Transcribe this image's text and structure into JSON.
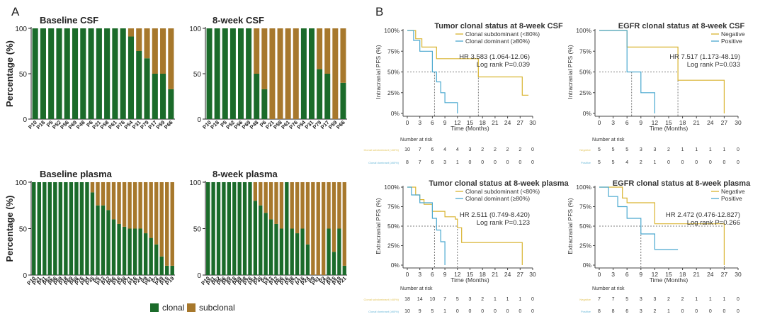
{
  "panel_labels": {
    "a": "A",
    "b": "B"
  },
  "colors": {
    "clonal": "#1b6b2a",
    "subclonal": "#a7782c",
    "yellow": "#d9b430",
    "blue": "#4aa8cf",
    "dark": "#333333",
    "faint_yellow": "#e2c45a",
    "faint_blue": "#6ab8d8"
  },
  "legend_a": {
    "clonal": "clonal",
    "subclonal": "subclonal"
  },
  "chart_data": [
    {
      "type": "bar",
      "stacked": true,
      "title": "Baseline CSF",
      "ylabel": "Percentage (%)",
      "ylim": [
        0,
        100
      ],
      "yticks": [
        0,
        50,
        100
      ],
      "categories": [
        "P10",
        "P18",
        "P5",
        "P52",
        "P56",
        "P69",
        "P48",
        "P6",
        "P21",
        "P58",
        "P61",
        "P76",
        "P54",
        "P31",
        "P79",
        "P17",
        "P59",
        "P66"
      ],
      "series": [
        {
          "name": "clonal",
          "values": [
            100,
            100,
            100,
            100,
            100,
            100,
            100,
            100,
            100,
            100,
            100,
            100,
            91,
            75,
            67,
            50,
            50,
            33
          ]
        },
        {
          "name": "subclonal",
          "values": [
            0,
            0,
            0,
            0,
            0,
            0,
            0,
            0,
            0,
            0,
            0,
            0,
            9,
            25,
            33,
            50,
            50,
            67
          ]
        }
      ]
    },
    {
      "type": "bar",
      "stacked": true,
      "title": "8-week CSF",
      "ylabel": "",
      "ylim": [
        0,
        100
      ],
      "yticks": [
        0,
        50,
        100
      ],
      "categories": [
        "P10",
        "P18",
        "P5",
        "P52",
        "P56",
        "P69",
        "P48",
        "P6",
        "P21",
        "P58",
        "P61",
        "P76",
        "P54",
        "P31",
        "P79",
        "P17",
        "P59",
        "P66"
      ],
      "series": [
        {
          "name": "clonal",
          "values": [
            100,
            100,
            100,
            100,
            100,
            100,
            50,
            33,
            0,
            0,
            0,
            0,
            100,
            100,
            55,
            50,
            0,
            40
          ]
        },
        {
          "name": "subclonal",
          "values": [
            0,
            0,
            0,
            0,
            0,
            0,
            50,
            67,
            100,
            100,
            100,
            100,
            0,
            0,
            45,
            50,
            100,
            60
          ]
        }
      ]
    },
    {
      "type": "bar",
      "stacked": true,
      "title": "Baseline plasma",
      "ylabel": "Percentage (%)",
      "ylim": [
        0,
        100
      ],
      "yticks": [
        0,
        50,
        100
      ],
      "categories": [
        "P10",
        "P21",
        "P31",
        "P52",
        "P56",
        "P59",
        "P18",
        "P69",
        "P58",
        "P76",
        "P54",
        "P35",
        "P5",
        "P13",
        "P12",
        "P66",
        "P16",
        "P48",
        "P71",
        "P16",
        "P24",
        "P9",
        "P51",
        "P3",
        "P39",
        "P15",
        "P19"
      ],
      "series": [
        {
          "name": "clonal",
          "values": [
            100,
            100,
            100,
            100,
            100,
            100,
            100,
            100,
            100,
            100,
            100,
            89,
            75,
            75,
            70,
            60,
            55,
            52,
            50,
            50,
            50,
            45,
            40,
            33,
            20,
            10,
            10
          ]
        },
        {
          "name": "subclonal",
          "values": [
            0,
            0,
            0,
            0,
            0,
            0,
            0,
            0,
            0,
            0,
            0,
            11,
            25,
            25,
            30,
            40,
            45,
            48,
            50,
            50,
            50,
            55,
            60,
            67,
            80,
            90,
            90
          ]
        }
      ]
    },
    {
      "type": "bar",
      "stacked": true,
      "title": "8-week plasma",
      "ylabel": "",
      "ylim": [
        0,
        100
      ],
      "yticks": [
        0,
        50,
        100
      ],
      "categories": [
        "P10",
        "P31",
        "P52",
        "P56",
        "P59",
        "P18",
        "P69",
        "P58",
        "P76",
        "P54",
        "P35",
        "P5",
        "P13",
        "P12",
        "P66",
        "P16",
        "P48",
        "P71",
        "P16",
        "P24",
        "P9",
        "P51",
        "P3",
        "P39",
        "P15",
        "P19",
        "P21"
      ],
      "series": [
        {
          "name": "clonal",
          "values": [
            100,
            100,
            100,
            100,
            100,
            100,
            100,
            100,
            100,
            80,
            75,
            67,
            60,
            55,
            50,
            100,
            50,
            45,
            50,
            33,
            0,
            0,
            0,
            50,
            25,
            50,
            10
          ]
        },
        {
          "name": "subclonal",
          "values": [
            0,
            0,
            0,
            0,
            0,
            0,
            0,
            0,
            0,
            20,
            25,
            33,
            40,
            45,
            50,
            0,
            50,
            55,
            50,
            67,
            100,
            100,
            100,
            50,
            75,
            50,
            90
          ]
        }
      ]
    },
    {
      "type": "line",
      "subtype": "kaplan-meier",
      "title": "Tumor clonal status at 8-week CSF",
      "xlabel": "Time (Months)",
      "ylabel": "Intracranial PFS (%)",
      "xticks": [
        0,
        3,
        6,
        9,
        12,
        15,
        18,
        21,
        24,
        27,
        30
      ],
      "xlim": [
        0,
        30
      ],
      "yticks": [
        "0%",
        "25%",
        "50%",
        "75%",
        "100%"
      ],
      "ylim": [
        0,
        100
      ],
      "legend": [
        "Clonal subdominant (<80%)",
        "Clonal dominant (≥80%)"
      ],
      "annotation": [
        "HR 3.583 (1.064-12.06)",
        "Log rank P=0.039"
      ],
      "medians": [
        17,
        6.5
      ],
      "series": [
        {
          "steps": [
            [
              0,
              100
            ],
            [
              2,
              90
            ],
            [
              3.5,
              80
            ],
            [
              7,
              66
            ],
            [
              17,
              44
            ],
            [
              27,
              44
            ],
            [
              27.5,
              22
            ],
            [
              29,
              22
            ]
          ]
        },
        {
          "steps": [
            [
              0,
              100
            ],
            [
              1.5,
              88
            ],
            [
              3,
              75
            ],
            [
              6,
              50
            ],
            [
              7,
              38
            ],
            [
              8,
              25
            ],
            [
              9,
              13
            ],
            [
              10,
              13
            ],
            [
              12,
              0
            ]
          ]
        }
      ],
      "risk_title": "Number at risk",
      "risk_rows": [
        {
          "label": "Clonal subdominant (<80%)",
          "values": [
            10,
            7,
            6,
            4,
            4,
            3,
            2,
            2,
            2,
            2,
            0
          ]
        },
        {
          "label": "Clonal dominant (≥80%)",
          "values": [
            8,
            7,
            6,
            3,
            1,
            0,
            0,
            0,
            0,
            0,
            0
          ]
        }
      ]
    },
    {
      "type": "line",
      "subtype": "kaplan-meier",
      "title": "EGFR clonal status at 8-week CSF",
      "xlabel": "Time (Months)",
      "ylabel": "Intracranial PFS (%)",
      "xticks": [
        0,
        3,
        6,
        9,
        12,
        15,
        18,
        21,
        24,
        27,
        30
      ],
      "xlim": [
        0,
        30
      ],
      "yticks": [
        "0%",
        "25%",
        "50%",
        "75%",
        "100%"
      ],
      "ylim": [
        0,
        100
      ],
      "legend": [
        "Negative",
        "Positive"
      ],
      "annotation": [
        "HR 7.517 (1.173-48.19)",
        "Log rank P=0.033"
      ],
      "medians": [
        17,
        7
      ],
      "series": [
        {
          "steps": [
            [
              0,
              100
            ],
            [
              6,
              80
            ],
            [
              17,
              40
            ],
            [
              27,
              40
            ],
            [
              27,
              0
            ]
          ]
        },
        {
          "steps": [
            [
              0,
              100
            ],
            [
              6,
              50
            ],
            [
              9,
              25
            ],
            [
              12,
              0
            ]
          ]
        }
      ],
      "risk_title": "Number at risk",
      "risk_rows": [
        {
          "label": "Negative",
          "values": [
            5,
            5,
            5,
            3,
            3,
            2,
            1,
            1,
            1,
            1,
            0
          ]
        },
        {
          "label": "Positive",
          "values": [
            5,
            5,
            4,
            2,
            1,
            0,
            0,
            0,
            0,
            0,
            0
          ]
        }
      ]
    },
    {
      "type": "line",
      "subtype": "kaplan-meier",
      "title": "Tumor clonal status at 8-week plasma",
      "xlabel": "Time (Months)",
      "ylabel": "Extracranial PFS (%)",
      "xticks": [
        0,
        3,
        6,
        9,
        12,
        15,
        18,
        21,
        24,
        27,
        30
      ],
      "xlim": [
        0,
        30
      ],
      "yticks": [
        "0%",
        "25%",
        "50%",
        "75%",
        "100%"
      ],
      "ylim": [
        0,
        100
      ],
      "legend": [
        "Clonal subdominant (<80%)",
        "Clonal dominant (≥80%)"
      ],
      "annotation": [
        "HR 2.511 (0.749-8.420)",
        "Log rank P=0.123"
      ],
      "medians": [
        12,
        6.5
      ],
      "series": [
        {
          "steps": [
            [
              0,
              100
            ],
            [
              2,
              90
            ],
            [
              3,
              84
            ],
            [
              4,
              78
            ],
            [
              6,
              69
            ],
            [
              9,
              62
            ],
            [
              11.5,
              59
            ],
            [
              12,
              48
            ],
            [
              13,
              29
            ],
            [
              27,
              29
            ],
            [
              27.5,
              0
            ]
          ]
        },
        {
          "steps": [
            [
              0,
              100
            ],
            [
              1,
              90
            ],
            [
              3,
              80
            ],
            [
              6,
              60
            ],
            [
              7,
              45
            ],
            [
              8,
              30
            ],
            [
              9,
              0
            ]
          ]
        }
      ],
      "risk_title": "Number at risk",
      "risk_rows": [
        {
          "label": "Clonal subdominant (<80%)",
          "values": [
            18,
            14,
            10,
            7,
            5,
            3,
            2,
            1,
            1,
            1,
            0
          ]
        },
        {
          "label": "Clonal dominant (≥80%)",
          "values": [
            10,
            9,
            5,
            1,
            0,
            0,
            0,
            0,
            0,
            0,
            0
          ]
        }
      ]
    },
    {
      "type": "line",
      "subtype": "kaplan-meier",
      "title": "EGFR clonal status at 8-week plasma",
      "xlabel": "Time (Months)",
      "ylabel": "Extracranial PFS (%)",
      "xticks": [
        0,
        3,
        6,
        9,
        12,
        15,
        18,
        21,
        24,
        27,
        30
      ],
      "xlim": [
        0,
        30
      ],
      "yticks": [
        "0%",
        "25%",
        "50%",
        "75%",
        "100%"
      ],
      "ylim": [
        0,
        100
      ],
      "legend": [
        "Negative",
        "Positive"
      ],
      "annotation": [
        "HR 2.472 (0.476-12.827)",
        "Log rank P=0.266"
      ],
      "medians": [
        27,
        9
      ],
      "series": [
        {
          "steps": [
            [
              0,
              100
            ],
            [
              5,
              86
            ],
            [
              6,
              80
            ],
            [
              12,
              53
            ],
            [
              27,
              53
            ],
            [
              27,
              0
            ]
          ]
        },
        {
          "steps": [
            [
              0,
              100
            ],
            [
              2,
              88
            ],
            [
              4,
              75
            ],
            [
              6,
              60
            ],
            [
              9,
              40
            ],
            [
              12,
              20
            ],
            [
              17,
              20
            ]
          ]
        }
      ],
      "risk_title": "Number at risk",
      "risk_rows": [
        {
          "label": "Negative",
          "values": [
            7,
            7,
            5,
            3,
            3,
            2,
            2,
            1,
            1,
            1,
            0
          ]
        },
        {
          "label": "Positive",
          "values": [
            8,
            8,
            6,
            3,
            2,
            1,
            0,
            0,
            0,
            0,
            0
          ]
        }
      ]
    }
  ]
}
